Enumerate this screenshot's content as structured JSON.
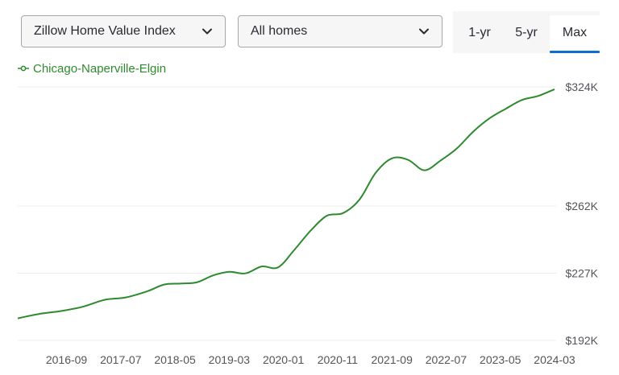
{
  "controls": {
    "metric_select": "Zillow Home Value Index",
    "homes_select": "All homes",
    "tabs": [
      "1-yr",
      "5-yr",
      "Max"
    ],
    "active_tab": "Max",
    "active_tab_color": "#0d6ecd"
  },
  "chart_data": {
    "type": "line",
    "title": "",
    "xlabel": "",
    "ylabel": "",
    "grid": "horizontal",
    "legend_position": "top-left",
    "y_ticks": [
      "$192K",
      "$227K",
      "$262K",
      "$324K"
    ],
    "y_tick_values": [
      192,
      227,
      262,
      324
    ],
    "ylim": [
      192,
      324
    ],
    "x_ticks": [
      "2016-09",
      "2017-07",
      "2018-05",
      "2019-03",
      "2020-01",
      "2020-11",
      "2021-09",
      "2022-07",
      "2023-05",
      "2024-03"
    ],
    "xlim": [
      "2015-12",
      "2024-03"
    ],
    "series": [
      {
        "name": "Chicago-Naperville-Elgin",
        "color": "#2e8a2e",
        "unit": "thousand USD",
        "x": [
          "2015-12",
          "2016-04",
          "2016-08",
          "2016-12",
          "2017-04",
          "2017-08",
          "2017-12",
          "2018-03",
          "2018-06",
          "2018-09",
          "2018-12",
          "2019-03",
          "2019-06",
          "2019-09",
          "2019-12",
          "2020-03",
          "2020-06",
          "2020-09",
          "2020-12",
          "2021-03",
          "2021-06",
          "2021-09",
          "2021-12",
          "2022-03",
          "2022-06",
          "2022-09",
          "2022-12",
          "2023-03",
          "2023-06",
          "2023-09",
          "2023-12",
          "2024-03"
        ],
        "values": [
          203.5,
          205.8,
          207.3,
          209.5,
          213.1,
          214.4,
          217.7,
          221.1,
          221.6,
          222.2,
          225.8,
          227.7,
          226.9,
          230.5,
          230.0,
          239.1,
          249.1,
          256.9,
          258.3,
          265.2,
          279.2,
          286.8,
          286.0,
          280.6,
          285.7,
          292.0,
          300.7,
          307.6,
          312.6,
          317.2,
          319.3,
          322.8
        ]
      }
    ]
  }
}
